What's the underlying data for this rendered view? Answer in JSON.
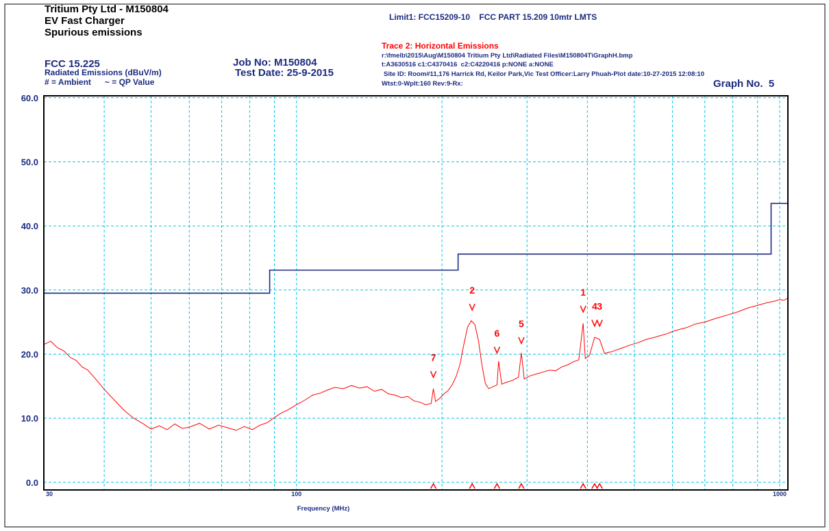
{
  "header": {
    "title": [
      "Tritium Pty Ltd - M150804",
      "EV Fast Charger",
      "Spurious emissions"
    ],
    "standard": "FCC 15.225",
    "units": "Radiated Emissions (dBuV/m)",
    "key": "# = Ambient      ~ = QP Value",
    "job": "Job No: M150804",
    "date": "Test Date: 25-9-2015",
    "limit": "Limit1: FCC15209-10    FCC PART 15.209 10mtr LMTS",
    "trace": "Trace 2: Horizontal Emissions",
    "info": [
      "r:\\fmelb\\2015\\Aug\\M150804 Tritium Pty Ltd\\Radiated Files\\M150804T\\GraphH.bmp",
      "t:A3630516 c1:C4370416  c2:C4220416 p:NONE a:NONE",
      "Site ID: Room#11,176 Harrick Rd, Keilor Park,Vic Test Officer:Larry Phuah-Plot date:10-27-2015 12:08:10",
      "Wtst:0-Wplt:160 Rev:9-Rx:"
    ],
    "graph": "Graph No.  5"
  },
  "chart_data": {
    "type": "line",
    "xlabel": "Frequency (MHz)",
    "xscale": "log",
    "xlim": [
      30,
      1040
    ],
    "ylim": [
      -1.2,
      60.3
    ],
    "xticks": [
      30,
      100,
      1000
    ],
    "xminor": [
      40,
      50,
      60,
      70,
      80,
      90,
      200,
      300,
      400,
      500,
      600,
      700,
      800,
      900
    ],
    "yticks": [
      {
        "value": 0,
        "label": "0.0"
      },
      {
        "value": 10,
        "label": "10.0"
      },
      {
        "value": 20,
        "label": "20.0"
      },
      {
        "value": 30,
        "label": "30.0"
      },
      {
        "value": 40,
        "label": "40.0"
      },
      {
        "value": 50,
        "label": "50.0"
      },
      {
        "value": 60,
        "label": "60.0"
      }
    ],
    "grid": true,
    "series": [
      {
        "color": "#1c2a80",
        "step": true,
        "x": [
          30,
          88,
          88,
          216,
          216,
          960,
          960,
          1040
        ],
        "values": [
          29.5,
          29.5,
          33.1,
          33.1,
          35.6,
          35.6,
          43.5,
          43.5
        ]
      },
      {
        "color": "#ff0000",
        "x": [
          30,
          31,
          32,
          33,
          34,
          35,
          36,
          37,
          38,
          39,
          40,
          42,
          44,
          46,
          48,
          50,
          52,
          54,
          56,
          58,
          60,
          63,
          66,
          69,
          72,
          75,
          78,
          81,
          84,
          87,
          90,
          93,
          96,
          100,
          104,
          108,
          112,
          116,
          120,
          125,
          130,
          135,
          140,
          145,
          150,
          155,
          160,
          165,
          170,
          175,
          180,
          185,
          190,
          192,
          194,
          198,
          202,
          206,
          210,
          214,
          218,
          222,
          226,
          230,
          234,
          238,
          242,
          246,
          250,
          255,
          260,
          262,
          266,
          272,
          280,
          288,
          292,
          296,
          304,
          314,
          324,
          334,
          344,
          354,
          364,
          374,
          384,
          392,
          396,
          404,
          414,
          424,
          434,
          450,
          470,
          490,
          510,
          530,
          550,
          580,
          610,
          640,
          670,
          700,
          740,
          780,
          820,
          860,
          900,
          940,
          980,
          1000,
          1020,
          1040
        ],
        "values": [
          21.5,
          22,
          21,
          20.5,
          19.5,
          19,
          18,
          17.5,
          16.5,
          15.5,
          14.5,
          12.8,
          11.2,
          10,
          9.2,
          8.3,
          8.8,
          8.2,
          9.1,
          8.4,
          8.6,
          9.2,
          8.3,
          8.9,
          8.5,
          8.1,
          8.7,
          8.2,
          8.9,
          9.3,
          10.1,
          10.8,
          11.3,
          12.1,
          12.8,
          13.6,
          13.9,
          14.4,
          14.8,
          14.6,
          15.1,
          14.7,
          14.9,
          14.2,
          14.5,
          13.8,
          13.6,
          13.2,
          13.4,
          12.7,
          12.5,
          12.1,
          12.3,
          14.6,
          12.6,
          13.1,
          13.8,
          14.3,
          15.2,
          16.5,
          18.4,
          21.5,
          24.2,
          25.2,
          24.6,
          22.1,
          18.3,
          15.4,
          14.6,
          14.9,
          15.2,
          18.9,
          15.3,
          15.6,
          15.9,
          16.4,
          20.2,
          16.1,
          16.6,
          16.9,
          17.2,
          17.5,
          17.4,
          18.0,
          18.3,
          18.8,
          19.1,
          24.8,
          19.3,
          19.8,
          22.6,
          22.3,
          20.1,
          20.4,
          20.9,
          21.4,
          21.8,
          22.3,
          22.6,
          23.1,
          23.7,
          24.1,
          24.7,
          25.0,
          25.6,
          26.1,
          26.6,
          27.2,
          27.6,
          28.0,
          28.3,
          28.5,
          28.4,
          28.7
        ]
      }
    ],
    "markers": [
      {
        "label": "7",
        "x": 192,
        "value": 16.8
      },
      {
        "label": "2",
        "x": 231,
        "value": 27.3
      },
      {
        "label": "6",
        "x": 260,
        "value": 20.6
      },
      {
        "label": "5",
        "x": 292,
        "value": 22.1
      },
      {
        "label": "1",
        "x": 392,
        "value": 27.0
      },
      {
        "label": "4",
        "x": 414,
        "value": 24.8
      },
      {
        "label": "3",
        "x": 424,
        "value": 24.8
      }
    ],
    "marker_color": "#ff0000"
  }
}
